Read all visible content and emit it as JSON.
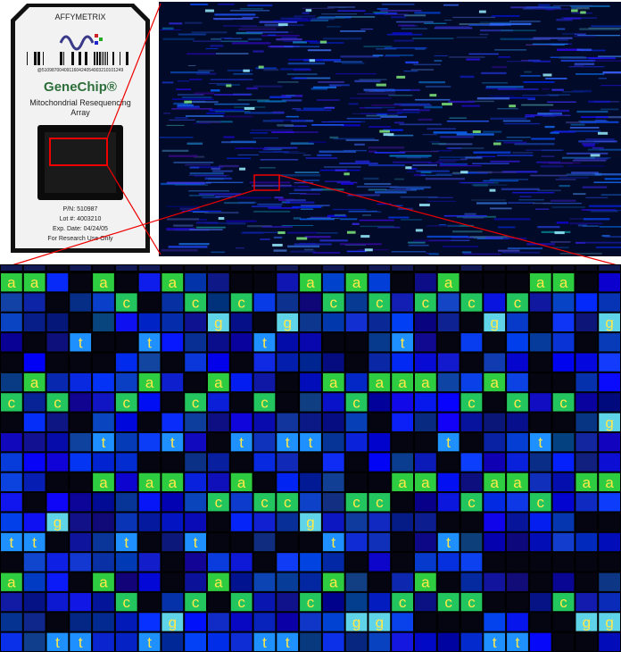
{
  "chip": {
    "brand": "AFFYMETRIX",
    "barcode_number": "@510987004091160424054003210101249",
    "product": "GeneChip®",
    "array_name": "Mitochondrial Resequencing Array",
    "part_number": "P/N:   510987",
    "lot": "Lot #:   4003210",
    "expiry": "Exp. Date:  04/24/05",
    "notice": "For Research Use Only"
  },
  "grid": {
    "rows": [
      [
        "a",
        "a",
        null,
        null,
        "a",
        null,
        null,
        "a",
        null,
        null,
        null,
        null,
        null,
        "a",
        null,
        "a",
        null,
        null,
        null,
        "a",
        null,
        null,
        null,
        "a",
        "a",
        null,
        null
      ],
      [
        null,
        null,
        null,
        null,
        null,
        "c",
        null,
        null,
        "c",
        null,
        "c",
        null,
        null,
        null,
        "c",
        null,
        "c",
        null,
        "c",
        null,
        "c",
        null,
        "c",
        null,
        null,
        null,
        null
      ],
      [
        null,
        null,
        null,
        null,
        null,
        null,
        null,
        null,
        null,
        "g",
        null,
        null,
        "g",
        null,
        null,
        null,
        null,
        null,
        null,
        null,
        null,
        "g",
        null,
        null,
        null,
        null,
        "g"
      ],
      [
        null,
        null,
        null,
        "t",
        null,
        null,
        "t",
        null,
        null,
        null,
        null,
        "t",
        null,
        null,
        null,
        null,
        null,
        "t",
        null,
        null,
        null,
        null,
        null,
        null,
        null,
        null,
        null
      ],
      [
        null,
        null,
        null,
        null,
        null,
        null,
        null,
        null,
        null,
        null,
        null,
        null,
        null,
        null,
        null,
        null,
        null,
        null,
        null,
        null,
        null,
        null,
        null,
        null,
        null,
        null,
        null
      ],
      [
        null,
        "a",
        null,
        null,
        null,
        null,
        "a",
        null,
        null,
        "a",
        null,
        null,
        null,
        null,
        "a",
        null,
        "a",
        "a",
        "a",
        null,
        null,
        "a",
        null,
        null,
        null,
        null,
        null
      ],
      [
        "c",
        null,
        "c",
        null,
        null,
        "c",
        null,
        null,
        "c",
        null,
        null,
        "c",
        null,
        null,
        null,
        "c",
        null,
        null,
        null,
        null,
        "c",
        null,
        "c",
        null,
        "c",
        null,
        null
      ],
      [
        null,
        null,
        null,
        null,
        null,
        null,
        null,
        null,
        null,
        null,
        null,
        null,
        null,
        null,
        null,
        null,
        null,
        null,
        null,
        null,
        null,
        null,
        null,
        null,
        null,
        null,
        "g"
      ],
      [
        null,
        null,
        null,
        null,
        "t",
        null,
        null,
        "t",
        null,
        null,
        "t",
        null,
        "t",
        "t",
        null,
        null,
        null,
        null,
        null,
        "t",
        null,
        null,
        null,
        "t",
        null,
        null,
        null
      ],
      [
        null,
        null,
        null,
        null,
        null,
        null,
        null,
        null,
        null,
        null,
        null,
        null,
        null,
        null,
        null,
        null,
        null,
        null,
        null,
        null,
        null,
        null,
        null,
        null,
        null,
        null,
        null
      ],
      [
        null,
        null,
        null,
        null,
        "a",
        null,
        "a",
        "a",
        null,
        null,
        "a",
        null,
        null,
        null,
        null,
        null,
        null,
        "a",
        "a",
        null,
        null,
        "a",
        "a",
        null,
        null,
        "a",
        "a"
      ],
      [
        null,
        null,
        null,
        null,
        null,
        null,
        null,
        null,
        null,
        "c",
        null,
        "c",
        "c",
        null,
        null,
        "c",
        "c",
        null,
        null,
        null,
        "c",
        null,
        null,
        "c",
        null,
        null,
        null
      ],
      [
        null,
        null,
        "g",
        null,
        null,
        null,
        null,
        null,
        null,
        null,
        null,
        null,
        null,
        "g",
        null,
        null,
        null,
        null,
        null,
        null,
        null,
        null,
        null,
        null,
        null,
        null,
        null
      ],
      [
        "t",
        "t",
        null,
        null,
        null,
        "t",
        null,
        null,
        "t",
        null,
        null,
        null,
        null,
        null,
        "t",
        null,
        null,
        null,
        null,
        "t",
        null,
        null,
        null,
        null,
        null,
        null,
        null
      ],
      [
        null,
        null,
        null,
        null,
        null,
        null,
        null,
        null,
        null,
        null,
        null,
        null,
        null,
        null,
        null,
        null,
        null,
        null,
        null,
        null,
        null,
        null,
        null,
        null,
        null,
        null,
        null
      ],
      [
        "a",
        null,
        null,
        null,
        "a",
        null,
        null,
        null,
        null,
        "a",
        null,
        null,
        null,
        null,
        "a",
        null,
        null,
        null,
        "a",
        null,
        null,
        null,
        null,
        null,
        null,
        null,
        null
      ],
      [
        null,
        null,
        null,
        null,
        null,
        "c",
        null,
        null,
        "c",
        null,
        "c",
        null,
        null,
        "c",
        null,
        null,
        null,
        "c",
        null,
        "c",
        "c",
        null,
        null,
        null,
        "c",
        null,
        null
      ],
      [
        null,
        null,
        null,
        null,
        null,
        null,
        null,
        "g",
        null,
        null,
        null,
        null,
        null,
        null,
        null,
        "g",
        "g",
        null,
        null,
        null,
        null,
        null,
        null,
        null,
        null,
        "g",
        "g"
      ],
      [
        null,
        null,
        "t",
        "t",
        null,
        null,
        "t",
        null,
        null,
        null,
        null,
        "t",
        "t",
        null,
        null,
        null,
        null,
        null,
        null,
        null,
        null,
        "t",
        "t",
        null,
        null,
        null,
        null
      ]
    ]
  }
}
